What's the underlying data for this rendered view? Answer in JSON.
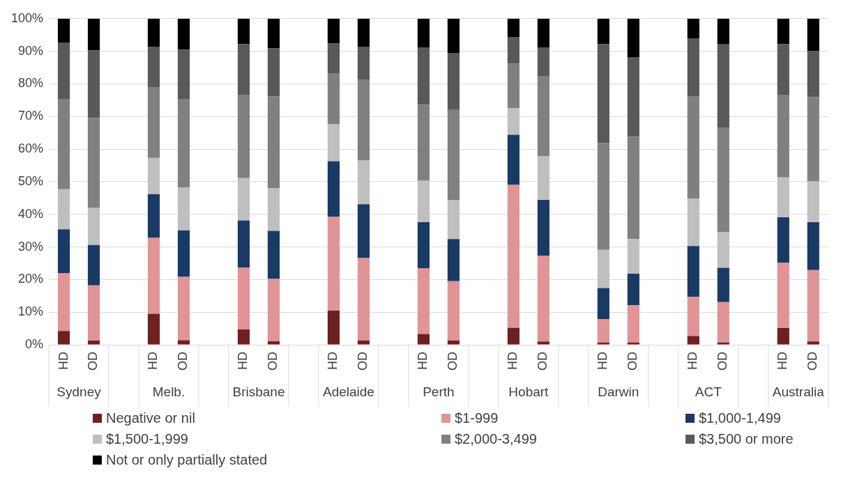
{
  "chart_data": {
    "type": "bar",
    "stacked": true,
    "categories": [
      "HD",
      "OD",
      null,
      "HD",
      "OD",
      null,
      "HD",
      "OD",
      null,
      "HD",
      "OD",
      null,
      "HD",
      "OD",
      null,
      "HD",
      "OD",
      null,
      "HD",
      "OD",
      null,
      "HD",
      "OD",
      null,
      "HD",
      "OD"
    ],
    "series": [
      {
        "name": "Negative or nil",
        "color": "#6e2020",
        "values": [
          4.2,
          1.3,
          null,
          9.5,
          1.4,
          null,
          4.7,
          1.1,
          null,
          10.5,
          1.3,
          null,
          3.3,
          1.3,
          null,
          5.2,
          1.0,
          null,
          0.7,
          0.7,
          null,
          2.7,
          0.7,
          null,
          5.2,
          1.0
        ]
      },
      {
        "name": "$1-999",
        "color": "#e09496",
        "values": [
          17.8,
          16.9,
          null,
          23.3,
          19.4,
          null,
          19.0,
          19.1,
          null,
          28.8,
          25.3,
          null,
          20.2,
          18.2,
          null,
          43.8,
          26.3,
          null,
          7.2,
          11.4,
          null,
          12.0,
          12.4,
          null,
          20.0,
          21.9
        ]
      },
      {
        "name": "$1,000-1,499",
        "color": "#1a3a66",
        "values": [
          13.4,
          12.4,
          null,
          13.4,
          14.3,
          null,
          14.4,
          14.7,
          null,
          17.0,
          16.5,
          null,
          14.1,
          12.9,
          null,
          15.4,
          17.1,
          null,
          9.5,
          9.7,
          null,
          15.6,
          10.5,
          null,
          13.9,
          14.7
        ]
      },
      {
        "name": "$1,500-1,999",
        "color": "#bfbfbf",
        "values": [
          12.3,
          11.5,
          null,
          11.1,
          13.1,
          null,
          13.0,
          13.1,
          null,
          11.4,
          13.4,
          null,
          12.7,
          12.0,
          null,
          8.1,
          13.4,
          null,
          11.7,
          10.6,
          null,
          14.5,
          10.9,
          null,
          12.2,
          12.6
        ]
      },
      {
        "name": "$2,000-3,499",
        "color": "#808080",
        "values": [
          27.7,
          27.5,
          null,
          21.7,
          27.2,
          null,
          25.6,
          28.2,
          null,
          15.6,
          24.9,
          null,
          23.3,
          27.8,
          null,
          13.7,
          24.5,
          null,
          32.8,
          31.4,
          null,
          31.3,
          32.0,
          null,
          25.4,
          25.8
        ]
      },
      {
        "name": "$3,500 or more",
        "color": "#595959",
        "values": [
          17.3,
          20.7,
          null,
          12.4,
          15.1,
          null,
          15.5,
          14.7,
          null,
          9.1,
          10.0,
          null,
          17.6,
          17.3,
          null,
          8.2,
          8.9,
          null,
          30.3,
          24.4,
          null,
          17.9,
          25.6,
          null,
          15.5,
          14.1
        ]
      },
      {
        "name": "Not or only partially stated",
        "color": "#000000",
        "values": [
          7.3,
          9.7,
          null,
          8.6,
          9.5,
          null,
          7.8,
          9.1,
          null,
          7.6,
          8.6,
          null,
          8.8,
          10.5,
          null,
          5.6,
          8.8,
          null,
          7.8,
          11.8,
          null,
          6.0,
          7.9,
          null,
          7.8,
          9.9
        ]
      }
    ],
    "ylim": [
      0,
      100
    ],
    "yticks": [
      {
        "value": 0,
        "label": "0%"
      },
      {
        "value": 10,
        "label": "10%"
      },
      {
        "value": 20,
        "label": "20%"
      },
      {
        "value": 30,
        "label": "30%"
      },
      {
        "value": 40,
        "label": "40%"
      },
      {
        "value": 50,
        "label": "50%"
      },
      {
        "value": 60,
        "label": "60%"
      },
      {
        "value": 70,
        "label": "70%"
      },
      {
        "value": 80,
        "label": "80%"
      },
      {
        "value": 90,
        "label": "90%"
      },
      {
        "value": 100,
        "label": "100%"
      }
    ],
    "grid": "y",
    "legend": "bottom",
    "annotations": [
      "Sydney",
      "Melb.",
      "Brisbane",
      "Adelaide",
      "Perth",
      "Hobart",
      "Darwin",
      "ACT",
      "Australia"
    ]
  }
}
